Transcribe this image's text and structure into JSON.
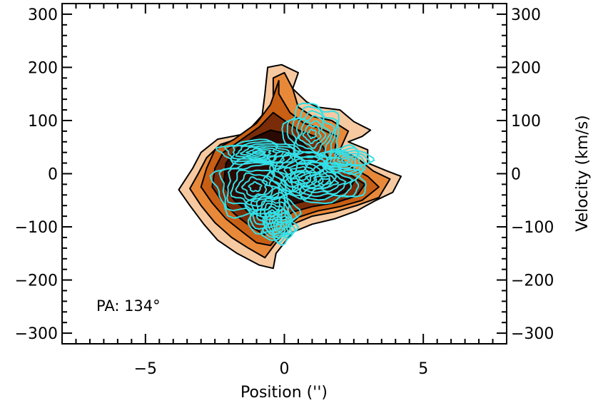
{
  "chart_data": {
    "type": "contour",
    "xlabel": "Position ('')",
    "ylabel": "Velocity  (km/s)",
    "xlim": [
      -8,
      8
    ],
    "ylim": [
      -320,
      320
    ],
    "x_ticks": [
      -5,
      0,
      5
    ],
    "x_tick_labels": [
      "−5",
      "0",
      "5"
    ],
    "y_ticks": [
      -300,
      -200,
      -100,
      0,
      100,
      200,
      300
    ],
    "y_tick_labels": [
      "−300",
      "−200",
      "−100",
      "0",
      "100",
      "200",
      "300"
    ],
    "y_minor_step": 20,
    "x_minor_step": 0.5,
    "annotation": "PA: 134°",
    "grid": false,
    "filled_series": {
      "colors": [
        "#f6c9a0",
        "#e8893a",
        "#c85f14",
        "#7a2c08",
        "#2a0a02"
      ],
      "levels": [
        {
          "level": 1,
          "points": [
            [
              -3.8,
              -30
            ],
            [
              -3.4,
              -60
            ],
            [
              -2.9,
              -95
            ],
            [
              -2.4,
              -125
            ],
            [
              -1.7,
              -150
            ],
            [
              -0.9,
              -172
            ],
            [
              -0.4,
              -178
            ],
            [
              -0.3,
              -150
            ],
            [
              0.3,
              -110
            ],
            [
              1.0,
              -95
            ],
            [
              1.8,
              -85
            ],
            [
              2.6,
              -70
            ],
            [
              3.3,
              -50
            ],
            [
              3.9,
              -35
            ],
            [
              4.2,
              -5
            ],
            [
              3.7,
              5
            ],
            [
              3.0,
              20
            ],
            [
              3.0,
              45
            ],
            [
              2.3,
              60
            ],
            [
              2.8,
              70
            ],
            [
              3.1,
              82
            ],
            [
              2.5,
              98
            ],
            [
              2.0,
              120
            ],
            [
              1.2,
              125
            ],
            [
              0.8,
              135
            ],
            [
              0.3,
              160
            ],
            [
              0.5,
              190
            ],
            [
              -0.1,
              205
            ],
            [
              -0.6,
              200
            ],
            [
              -0.7,
              150
            ],
            [
              -0.8,
              110
            ],
            [
              -1.4,
              75
            ],
            [
              -2.4,
              65
            ],
            [
              -3.0,
              40
            ],
            [
              -3.3,
              10
            ]
          ]
        },
        {
          "level": 2,
          "points": [
            [
              -3.4,
              -28
            ],
            [
              -3.0,
              -60
            ],
            [
              -2.5,
              -92
            ],
            [
              -1.9,
              -120
            ],
            [
              -1.3,
              -140
            ],
            [
              -0.7,
              -158
            ],
            [
              -0.3,
              -130
            ],
            [
              0.3,
              -95
            ],
            [
              1.0,
              -80
            ],
            [
              1.8,
              -72
            ],
            [
              2.6,
              -60
            ],
            [
              3.4,
              -45
            ],
            [
              3.8,
              -10
            ],
            [
              3.2,
              5
            ],
            [
              2.6,
              30
            ],
            [
              2.0,
              45
            ],
            [
              2.3,
              80
            ],
            [
              1.7,
              100
            ],
            [
              1.0,
              108
            ],
            [
              0.5,
              125
            ],
            [
              0.3,
              160
            ],
            [
              0.0,
              190
            ],
            [
              -0.4,
              180
            ],
            [
              -0.4,
              140
            ],
            [
              -0.7,
              100
            ],
            [
              -1.4,
              70
            ],
            [
              -2.3,
              55
            ],
            [
              -2.8,
              30
            ],
            [
              -3.1,
              0
            ]
          ]
        },
        {
          "level": 3,
          "points": [
            [
              -3.0,
              -25
            ],
            [
              -2.6,
              -55
            ],
            [
              -2.1,
              -85
            ],
            [
              -1.5,
              -110
            ],
            [
              -1.0,
              -130
            ],
            [
              -0.5,
              -135
            ],
            [
              -0.1,
              -110
            ],
            [
              0.5,
              -82
            ],
            [
              1.2,
              -70
            ],
            [
              2.0,
              -62
            ],
            [
              2.8,
              -50
            ],
            [
              3.4,
              -25
            ],
            [
              3.0,
              -5
            ],
            [
              2.3,
              15
            ],
            [
              1.8,
              40
            ],
            [
              1.9,
              70
            ],
            [
              1.3,
              85
            ],
            [
              0.7,
              95
            ],
            [
              0.2,
              115
            ],
            [
              -0.2,
              150
            ],
            [
              -0.2,
              175
            ],
            [
              -0.5,
              130
            ],
            [
              -1.0,
              95
            ],
            [
              -1.8,
              65
            ],
            [
              -2.5,
              45
            ],
            [
              -2.8,
              10
            ]
          ]
        },
        {
          "level": 4,
          "points": [
            [
              -2.6,
              -25
            ],
            [
              -2.2,
              -55
            ],
            [
              -1.7,
              -80
            ],
            [
              -1.2,
              -100
            ],
            [
              -0.7,
              -115
            ],
            [
              -0.3,
              -95
            ],
            [
              0.3,
              -72
            ],
            [
              1.0,
              -62
            ],
            [
              1.8,
              -55
            ],
            [
              2.6,
              -42
            ],
            [
              2.9,
              -20
            ],
            [
              2.3,
              0
            ],
            [
              1.7,
              20
            ],
            [
              1.4,
              50
            ],
            [
              1.1,
              70
            ],
            [
              0.5,
              82
            ],
            [
              0.0,
              100
            ],
            [
              -0.4,
              115
            ],
            [
              -0.9,
              88
            ],
            [
              -1.6,
              62
            ],
            [
              -2.2,
              40
            ],
            [
              -2.5,
              10
            ]
          ]
        },
        {
          "level": 5,
          "points": [
            [
              -2.2,
              -22
            ],
            [
              -1.8,
              -50
            ],
            [
              -1.3,
              -72
            ],
            [
              -0.8,
              -85
            ],
            [
              -0.4,
              -70
            ],
            [
              0.2,
              -58
            ],
            [
              0.9,
              -50
            ],
            [
              1.6,
              -45
            ],
            [
              2.3,
              -32
            ],
            [
              2.5,
              -15
            ],
            [
              1.9,
              0
            ],
            [
              1.3,
              15
            ],
            [
              1.0,
              40
            ],
            [
              0.6,
              60
            ],
            [
              0.1,
              75
            ],
            [
              -0.5,
              82
            ],
            [
              -1.1,
              68
            ],
            [
              -1.7,
              48
            ],
            [
              -2.1,
              20
            ]
          ]
        }
      ]
    },
    "overlay_series": {
      "color": "#33e0e8",
      "blobs": [
        {
          "cx": -1.05,
          "cy": -25,
          "rx": 1.45,
          "ry": 58
        },
        {
          "cx": -0.45,
          "cy": -75,
          "rx": 0.9,
          "ry": 42
        },
        {
          "cx": -0.2,
          "cy": -100,
          "rx": 0.6,
          "ry": 30
        },
        {
          "cx": 0.55,
          "cy": 0,
          "rx": 1.2,
          "ry": 42
        },
        {
          "cx": 1.45,
          "cy": -15,
          "rx": 1.5,
          "ry": 38
        },
        {
          "cx": 1.0,
          "cy": 75,
          "rx": 1.0,
          "ry": 55
        },
        {
          "cx": -0.9,
          "cy": 40,
          "rx": 1.4,
          "ry": 22
        },
        {
          "cx": 2.2,
          "cy": 25,
          "rx": 0.9,
          "ry": 25
        }
      ],
      "rings_per_blob": 7
    }
  }
}
